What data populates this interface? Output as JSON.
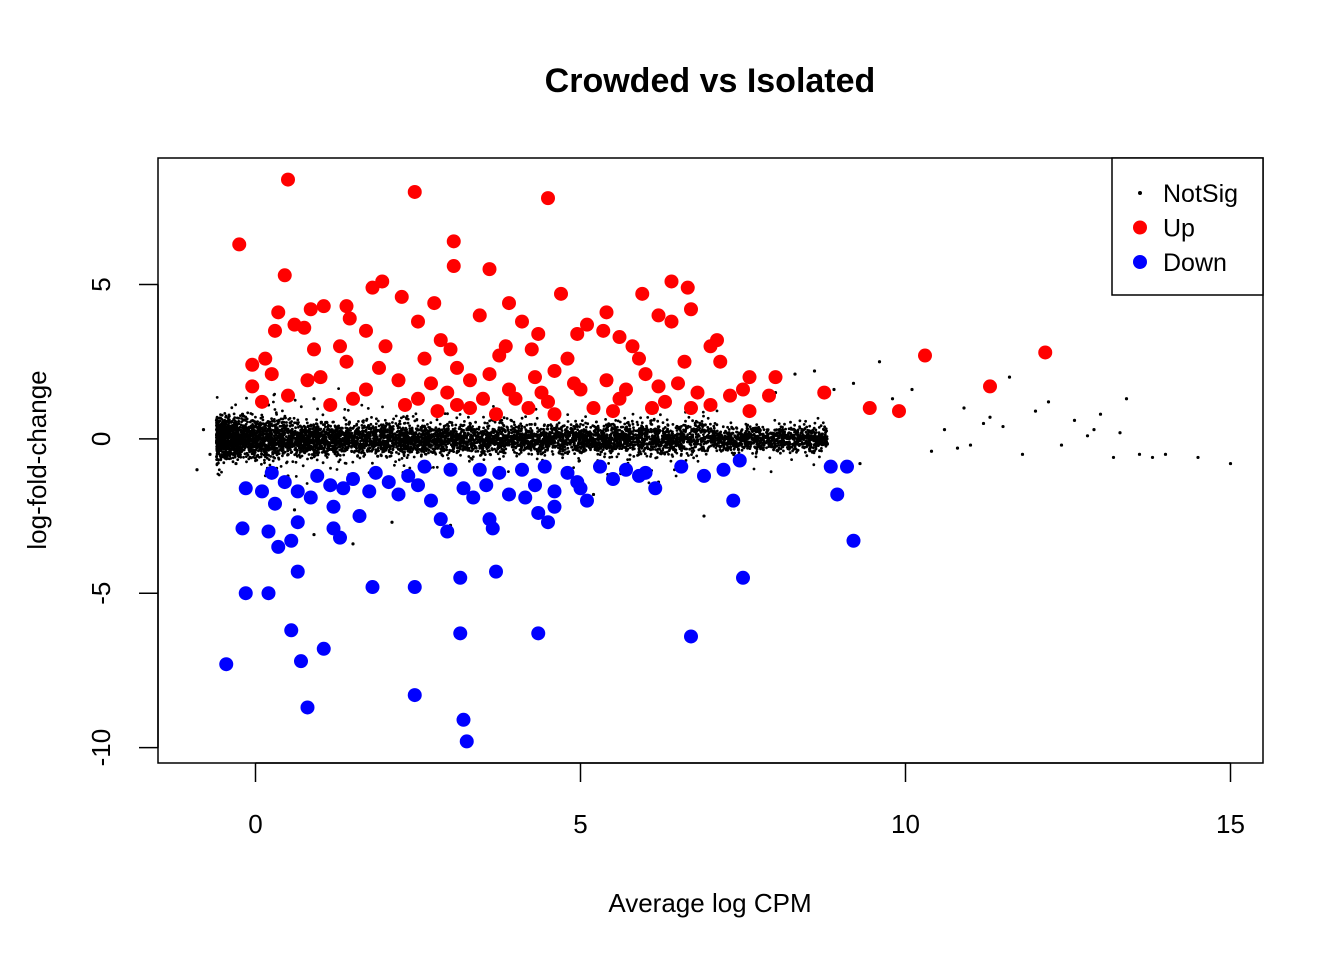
{
  "chart_data": {
    "type": "scatter",
    "title": "Crowded vs Isolated",
    "xlabel": "Average log CPM",
    "ylabel": "log-fold-change",
    "xlim": [
      -1.5,
      15.5
    ],
    "ylim": [
      -10.5,
      9.1
    ],
    "x_ticks": [
      0,
      5,
      10,
      15
    ],
    "y_ticks": [
      -10,
      -5,
      0,
      5
    ],
    "legend_position": "top-right",
    "legend": [
      {
        "label": "NotSig",
        "color": "#000000",
        "marker": "small-dot"
      },
      {
        "label": "Up",
        "color": "#ff0000",
        "marker": "filled-circle"
      },
      {
        "label": "Down",
        "color": "#0000ff",
        "marker": "filled-circle"
      }
    ],
    "series": [
      {
        "name": "NotSig",
        "color": "#000000",
        "points": [
          [
            -0.9,
            -1.0
          ],
          [
            -0.8,
            0.3
          ],
          [
            -0.7,
            -0.5
          ],
          [
            -0.6,
            0.6
          ],
          [
            -0.5,
            -0.3
          ],
          [
            -0.4,
            0.2
          ],
          [
            -0.3,
            -0.8
          ],
          [
            -0.2,
            0.8
          ],
          [
            0.2,
            1.1
          ],
          [
            0.5,
            -1.2
          ],
          [
            0.9,
            1.3
          ],
          [
            1.2,
            -1.4
          ],
          [
            1.5,
            -3.4
          ],
          [
            0.6,
            -2.3
          ],
          [
            0.9,
            -3.1
          ],
          [
            2.1,
            -2.7
          ],
          [
            3.0,
            -2.8
          ],
          [
            5.2,
            -1.8
          ],
          [
            6.9,
            -2.5
          ],
          [
            6.2,
            -1.4
          ],
          [
            8.0,
            1.5
          ],
          [
            8.3,
            2.1
          ],
          [
            8.6,
            2.2
          ],
          [
            8.9,
            1.6
          ],
          [
            9.2,
            1.8
          ],
          [
            9.3,
            -0.8
          ],
          [
            9.6,
            2.5
          ],
          [
            9.8,
            1.3
          ],
          [
            10.1,
            1.6
          ],
          [
            10.4,
            -0.4
          ],
          [
            10.6,
            0.3
          ],
          [
            10.9,
            1.0
          ],
          [
            11.0,
            -0.2
          ],
          [
            11.3,
            0.7
          ],
          [
            11.5,
            0.4
          ],
          [
            11.6,
            2.0
          ],
          [
            11.8,
            -0.5
          ],
          [
            12.0,
            0.9
          ],
          [
            12.2,
            1.2
          ],
          [
            12.4,
            -0.2
          ],
          [
            12.6,
            0.6
          ],
          [
            12.8,
            0.1
          ],
          [
            13.0,
            0.8
          ],
          [
            13.2,
            -0.6
          ],
          [
            13.4,
            1.3
          ],
          [
            13.6,
            -0.5
          ],
          [
            13.8,
            -0.6
          ],
          [
            14.0,
            -0.5
          ],
          [
            14.5,
            -0.6
          ],
          [
            15.0,
            -0.8
          ],
          [
            12.9,
            0.3
          ],
          [
            11.2,
            0.5
          ],
          [
            10.8,
            -0.3
          ],
          [
            13.3,
            0.2
          ]
        ]
      },
      {
        "name": "Up",
        "color": "#ff0000",
        "points": [
          [
            -0.25,
            6.3
          ],
          [
            0.5,
            8.4
          ],
          [
            2.45,
            8.0
          ],
          [
            4.5,
            7.8
          ],
          [
            3.05,
            6.4
          ],
          [
            3.6,
            5.5
          ],
          [
            0.45,
            5.3
          ],
          [
            1.95,
            5.1
          ],
          [
            3.05,
            5.6
          ],
          [
            6.4,
            5.1
          ],
          [
            6.65,
            4.9
          ],
          [
            4.7,
            4.7
          ],
          [
            5.95,
            4.7
          ],
          [
            1.8,
            4.9
          ],
          [
            3.9,
            4.4
          ],
          [
            2.25,
            4.6
          ],
          [
            2.75,
            4.4
          ],
          [
            1.05,
            4.3
          ],
          [
            1.4,
            4.3
          ],
          [
            0.85,
            4.2
          ],
          [
            0.35,
            4.1
          ],
          [
            3.45,
            4.0
          ],
          [
            5.4,
            4.1
          ],
          [
            6.2,
            4.0
          ],
          [
            6.7,
            4.2
          ],
          [
            1.45,
            3.9
          ],
          [
            2.5,
            3.8
          ],
          [
            4.1,
            3.8
          ],
          [
            5.1,
            3.7
          ],
          [
            0.6,
            3.7
          ],
          [
            1.7,
            3.5
          ],
          [
            4.35,
            3.4
          ],
          [
            5.35,
            3.5
          ],
          [
            5.6,
            3.3
          ],
          [
            6.4,
            3.8
          ],
          [
            7.1,
            3.2
          ],
          [
            0.3,
            3.5
          ],
          [
            2.85,
            3.2
          ],
          [
            3.85,
            3.0
          ],
          [
            0.75,
            3.6
          ],
          [
            1.3,
            3.0
          ],
          [
            2.0,
            3.0
          ],
          [
            4.95,
            3.4
          ],
          [
            0.9,
            2.9
          ],
          [
            3.0,
            2.9
          ],
          [
            4.25,
            2.9
          ],
          [
            5.8,
            3.0
          ],
          [
            7.0,
            3.0
          ],
          [
            0.15,
            2.6
          ],
          [
            1.4,
            2.5
          ],
          [
            2.6,
            2.6
          ],
          [
            3.75,
            2.7
          ],
          [
            4.8,
            2.6
          ],
          [
            5.9,
            2.6
          ],
          [
            6.6,
            2.5
          ],
          [
            7.15,
            2.5
          ],
          [
            10.3,
            2.7
          ],
          [
            12.15,
            2.8
          ],
          [
            -0.05,
            2.4
          ],
          [
            1.9,
            2.3
          ],
          [
            3.1,
            2.3
          ],
          [
            4.6,
            2.2
          ],
          [
            6.0,
            2.1
          ],
          [
            0.25,
            2.1
          ],
          [
            1.0,
            2.0
          ],
          [
            2.2,
            1.9
          ],
          [
            3.3,
            1.9
          ],
          [
            4.3,
            2.0
          ],
          [
            5.4,
            1.9
          ],
          [
            6.5,
            1.8
          ],
          [
            7.6,
            2.0
          ],
          [
            8.0,
            2.0
          ],
          [
            -0.05,
            1.7
          ],
          [
            1.7,
            1.6
          ],
          [
            2.95,
            1.5
          ],
          [
            3.9,
            1.6
          ],
          [
            5.0,
            1.6
          ],
          [
            6.8,
            1.5
          ],
          [
            7.5,
            1.6
          ],
          [
            11.3,
            1.7
          ],
          [
            0.5,
            1.4
          ],
          [
            1.5,
            1.3
          ],
          [
            2.5,
            1.3
          ],
          [
            3.5,
            1.3
          ],
          [
            4.5,
            1.2
          ],
          [
            5.6,
            1.3
          ],
          [
            6.3,
            1.2
          ],
          [
            7.3,
            1.4
          ],
          [
            8.75,
            1.5
          ],
          [
            7.9,
            1.4
          ],
          [
            0.1,
            1.2
          ],
          [
            1.15,
            1.1
          ],
          [
            2.3,
            1.1
          ],
          [
            3.3,
            1.0
          ],
          [
            4.2,
            1.0
          ],
          [
            5.2,
            1.0
          ],
          [
            6.1,
            1.0
          ],
          [
            7.0,
            1.1
          ],
          [
            7.6,
            0.9
          ],
          [
            9.45,
            1.0
          ],
          [
            9.9,
            0.9
          ],
          [
            3.7,
            0.8
          ],
          [
            4.6,
            0.8
          ],
          [
            2.8,
            0.9
          ],
          [
            5.5,
            0.9
          ],
          [
            6.7,
            1.0
          ],
          [
            3.1,
            1.1
          ],
          [
            4.0,
            1.3
          ],
          [
            0.8,
            1.9
          ],
          [
            2.7,
            1.8
          ],
          [
            3.6,
            2.1
          ],
          [
            4.9,
            1.8
          ],
          [
            5.7,
            1.6
          ],
          [
            6.2,
            1.7
          ],
          [
            4.4,
            1.5
          ]
        ]
      },
      {
        "name": "Down",
        "color": "#0000ff",
        "points": [
          [
            -0.45,
            -7.3
          ],
          [
            -0.15,
            -5.0
          ],
          [
            0.2,
            -5.0
          ],
          [
            0.65,
            -4.3
          ],
          [
            1.8,
            -4.8
          ],
          [
            2.45,
            -4.8
          ],
          [
            3.15,
            -4.5
          ],
          [
            3.7,
            -4.3
          ],
          [
            7.5,
            -4.5
          ],
          [
            0.55,
            -6.2
          ],
          [
            0.7,
            -7.2
          ],
          [
            1.05,
            -6.8
          ],
          [
            0.8,
            -8.7
          ],
          [
            2.45,
            -8.3
          ],
          [
            3.15,
            -6.3
          ],
          [
            4.35,
            -6.3
          ],
          [
            6.7,
            -6.4
          ],
          [
            3.2,
            -9.1
          ],
          [
            3.25,
            -9.8
          ],
          [
            -0.2,
            -2.9
          ],
          [
            0.2,
            -3.0
          ],
          [
            0.35,
            -3.5
          ],
          [
            0.55,
            -3.3
          ],
          [
            0.65,
            -2.7
          ],
          [
            1.2,
            -2.9
          ],
          [
            1.3,
            -3.2
          ],
          [
            2.95,
            -3.0
          ],
          [
            3.65,
            -2.9
          ],
          [
            3.6,
            -2.6
          ],
          [
            4.35,
            -2.4
          ],
          [
            4.5,
            -2.7
          ],
          [
            7.35,
            -2.0
          ],
          [
            8.95,
            -1.8
          ],
          [
            9.2,
            -3.3
          ],
          [
            -0.15,
            -1.6
          ],
          [
            0.1,
            -1.7
          ],
          [
            0.3,
            -2.1
          ],
          [
            0.65,
            -1.7
          ],
          [
            0.85,
            -1.9
          ],
          [
            1.2,
            -2.2
          ],
          [
            1.35,
            -1.6
          ],
          [
            1.75,
            -1.7
          ],
          [
            2.2,
            -1.8
          ],
          [
            2.5,
            -1.5
          ],
          [
            2.7,
            -2.0
          ],
          [
            3.2,
            -1.6
          ],
          [
            3.55,
            -1.5
          ],
          [
            3.9,
            -1.8
          ],
          [
            4.3,
            -1.5
          ],
          [
            4.6,
            -1.7
          ],
          [
            4.95,
            -1.4
          ],
          [
            5.1,
            -2.0
          ],
          [
            5.5,
            -1.3
          ],
          [
            5.9,
            -1.2
          ],
          [
            6.15,
            -1.6
          ],
          [
            6.9,
            -1.2
          ],
          [
            7.2,
            -1.0
          ],
          [
            7.45,
            -0.7
          ],
          [
            8.85,
            -0.9
          ],
          [
            9.1,
            -0.9
          ],
          [
            0.25,
            -1.1
          ],
          [
            0.95,
            -1.2
          ],
          [
            1.5,
            -1.3
          ],
          [
            1.85,
            -1.1
          ],
          [
            2.35,
            -1.2
          ],
          [
            2.6,
            -0.9
          ],
          [
            3.0,
            -1.0
          ],
          [
            3.45,
            -1.0
          ],
          [
            3.75,
            -1.1
          ],
          [
            4.1,
            -1.0
          ],
          [
            4.45,
            -0.9
          ],
          [
            4.8,
            -1.1
          ],
          [
            5.3,
            -0.9
          ],
          [
            5.7,
            -1.0
          ],
          [
            6.0,
            -1.1
          ],
          [
            6.55,
            -0.9
          ],
          [
            1.6,
            -2.5
          ],
          [
            2.85,
            -2.6
          ],
          [
            4.6,
            -2.2
          ],
          [
            5.0,
            -1.6
          ],
          [
            0.45,
            -1.4
          ],
          [
            1.15,
            -1.5
          ],
          [
            2.05,
            -1.4
          ],
          [
            3.35,
            -1.9
          ],
          [
            4.15,
            -1.9
          ]
        ]
      }
    ]
  }
}
